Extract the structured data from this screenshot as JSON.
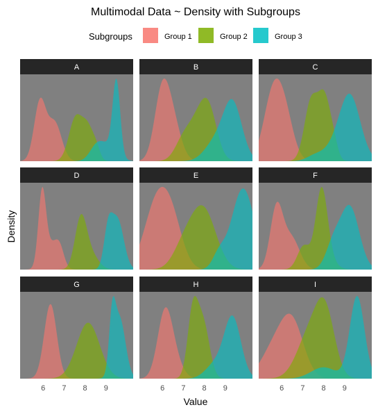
{
  "chart_data": {
    "type": "area",
    "title": "Multimodal Data ~ Density with Subgroups",
    "xlabel": "Value",
    "ylabel": "Density",
    "legend": {
      "title": "Subgroups",
      "position": "top",
      "entries": [
        "Group 1",
        "Group 2",
        "Group 3"
      ]
    },
    "colors": {
      "Group 1": "#F8766D",
      "Group 2": "#7CAE00",
      "Group 3": "#00BFC4",
      "panel_background": "#808080",
      "strip_background": "#262626",
      "strip_text": "#ffffff"
    },
    "facet_layout": {
      "rows": 3,
      "cols": 3,
      "scales": "free_y"
    },
    "xlim": [
      4.9,
      10.3
    ],
    "x_ticks": [
      6,
      7,
      8,
      9
    ],
    "grid": false,
    "panels": [
      {
        "label": "A",
        "series": [
          {
            "name": "Group 1",
            "components": [
              [
                5.85,
                0.28,
                0.8
              ],
              [
                6.55,
                0.33,
                0.52
              ]
            ]
          },
          {
            "name": "Group 2",
            "components": [
              [
                7.55,
                0.32,
                0.58
              ],
              [
                8.15,
                0.28,
                0.42
              ],
              [
                8.55,
                0.18,
                0.12
              ]
            ]
          },
          {
            "name": "Group 3",
            "components": [
              [
                8.5,
                0.3,
                0.12
              ],
              [
                9.0,
                0.45,
                0.22
              ],
              [
                9.5,
                0.18,
                1.0
              ]
            ]
          }
        ]
      },
      {
        "label": "B",
        "series": [
          {
            "name": "Group 1",
            "components": [
              [
                5.95,
                0.35,
                0.6
              ],
              [
                6.45,
                0.4,
                0.42
              ]
            ]
          },
          {
            "name": "Group 2",
            "components": [
              [
                7.0,
                0.4,
                0.2
              ],
              [
                7.9,
                0.5,
                0.5
              ],
              [
                8.3,
                0.35,
                0.2
              ]
            ]
          },
          {
            "name": "Group 3",
            "components": [
              [
                8.5,
                0.5,
                0.18
              ],
              [
                9.35,
                0.45,
                0.58
              ]
            ]
          }
        ]
      },
      {
        "label": "C",
        "series": [
          {
            "name": "Group 1",
            "components": [
              [
                5.6,
                0.45,
                0.6
              ],
              [
                6.2,
                0.4,
                0.3
              ]
            ]
          },
          {
            "name": "Group 2",
            "components": [
              [
                7.4,
                0.32,
                0.52
              ],
              [
                8.05,
                0.3,
                0.54
              ],
              [
                8.5,
                0.2,
                0.1
              ]
            ]
          },
          {
            "name": "Group 3",
            "components": [
              [
                7.6,
                0.4,
                0.05
              ],
              [
                8.4,
                0.45,
                0.08
              ],
              [
                9.25,
                0.5,
                0.58
              ]
            ]
          }
        ]
      },
      {
        "label": "D",
        "series": [
          {
            "name": "Group 1",
            "components": [
              [
                5.95,
                0.18,
                1.0
              ],
              [
                6.4,
                0.35,
                0.35
              ],
              [
                6.8,
                0.2,
                0.2
              ]
            ]
          },
          {
            "name": "Group 2",
            "components": [
              [
                7.8,
                0.28,
                0.7
              ],
              [
                8.3,
                0.35,
                0.2
              ]
            ]
          },
          {
            "name": "Group 3",
            "components": [
              [
                9.1,
                0.2,
                0.5
              ],
              [
                9.55,
                0.3,
                0.7
              ]
            ]
          }
        ]
      },
      {
        "label": "E",
        "series": [
          {
            "name": "Group 1",
            "components": [
              [
                5.75,
                0.6,
                0.58
              ],
              [
                6.5,
                0.5,
                0.3
              ]
            ]
          },
          {
            "name": "Group 2",
            "components": [
              [
                7.0,
                0.5,
                0.18
              ],
              [
                7.95,
                0.6,
                0.52
              ]
            ]
          },
          {
            "name": "Group 3",
            "components": [
              [
                8.7,
                0.3,
                0.12
              ],
              [
                9.85,
                0.55,
                0.7
              ]
            ]
          }
        ]
      },
      {
        "label": "F",
        "series": [
          {
            "name": "Group 1",
            "components": [
              [
                5.75,
                0.3,
                0.72
              ],
              [
                6.45,
                0.4,
                0.38
              ]
            ]
          },
          {
            "name": "Group 2",
            "components": [
              [
                7.05,
                0.3,
                0.28
              ],
              [
                7.9,
                0.28,
                0.85
              ],
              [
                8.1,
                0.4,
                0.15
              ]
            ]
          },
          {
            "name": "Group 3",
            "components": [
              [
                8.45,
                0.35,
                0.28
              ],
              [
                9.25,
                0.45,
                0.75
              ]
            ]
          }
        ]
      },
      {
        "label": "G",
        "series": [
          {
            "name": "Group 1",
            "components": [
              [
                6.35,
                0.3,
                0.8
              ]
            ]
          },
          {
            "name": "Group 2",
            "components": [
              [
                8.15,
                0.55,
                0.6
              ]
            ]
          },
          {
            "name": "Group 3",
            "components": [
              [
                9.3,
                0.15,
                0.55
              ],
              [
                9.65,
                0.28,
                0.65
              ]
            ]
          }
        ]
      },
      {
        "label": "H",
        "series": [
          {
            "name": "Group 1",
            "components": [
              [
                6.1,
                0.35,
                0.62
              ],
              [
                6.5,
                0.4,
                0.22
              ]
            ]
          },
          {
            "name": "Group 2",
            "components": [
              [
                7.45,
                0.25,
                0.7
              ],
              [
                7.95,
                0.3,
                0.58
              ]
            ]
          },
          {
            "name": "Group 3",
            "components": [
              [
                8.5,
                0.45,
                0.15
              ],
              [
                9.35,
                0.4,
                0.65
              ]
            ]
          }
        ]
      },
      {
        "label": "I",
        "series": [
          {
            "name": "Group 1",
            "components": [
              [
                5.6,
                0.6,
                0.2
              ],
              [
                6.5,
                0.55,
                0.38
              ]
            ]
          },
          {
            "name": "Group 2",
            "components": [
              [
                7.35,
                0.6,
                0.32
              ],
              [
                8.1,
                0.45,
                0.4
              ]
            ]
          },
          {
            "name": "Group 3",
            "components": [
              [
                8.0,
                0.6,
                0.08
              ],
              [
                9.6,
                0.35,
                0.58
              ]
            ]
          }
        ]
      }
    ]
  }
}
